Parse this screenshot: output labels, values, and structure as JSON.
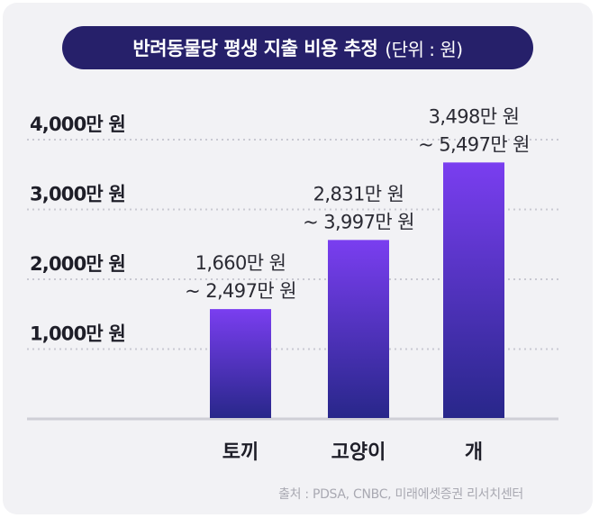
{
  "title": "반려동물당 평생 지출 비용 추정",
  "unit_label": "(단위 : 원)",
  "source": "출처 : PDSA, CNBC, 미래에셋증권 리서치센터",
  "colors": {
    "title_bg": "#26206a",
    "bar_top": "#7a3ef0",
    "bar_bottom": "#28278a",
    "grid": "#c9c9d2",
    "baseline": "#cfcfd6",
    "card_bg": "#f2f2f5"
  },
  "chart_data": {
    "type": "bar",
    "title": "반려동물당 평생 지출 비용 추정",
    "unit": "(단위 : 원)",
    "categories": [
      "토끼",
      "고양이",
      "개"
    ],
    "ranges": [
      {
        "low": 1660,
        "high": 2497,
        "label_lines": [
          "1,660만 원",
          "~ 2,497만 원"
        ]
      },
      {
        "low": 2831,
        "high": 3997,
        "label_lines": [
          "2,831만 원",
          "~ 3,997만 원"
        ]
      },
      {
        "low": 3498,
        "high": 5497,
        "label_lines": [
          "3,498만 원",
          "~ 5,497만 원"
        ]
      }
    ],
    "values": [
      1560,
      2550,
      3660
    ],
    "y_ticks": [
      {
        "value": 1000,
        "label": "1,000만 원"
      },
      {
        "value": 2000,
        "label": "2,000만 원"
      },
      {
        "value": 3000,
        "label": "3,000만 원"
      },
      {
        "value": 4000,
        "label": "4,000만 원"
      }
    ],
    "ylim": [
      0,
      4000
    ],
    "grid": true
  }
}
